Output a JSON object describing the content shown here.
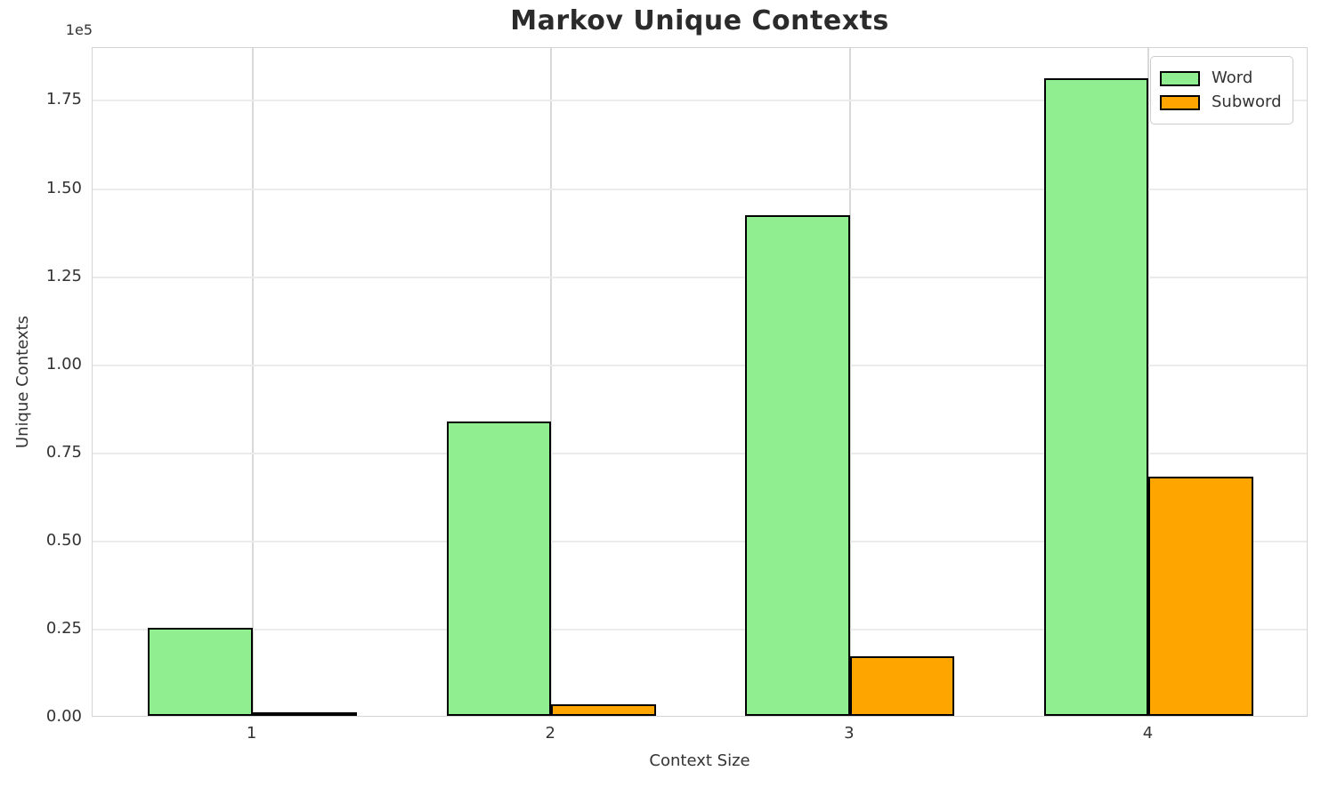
{
  "chart_data": {
    "type": "bar",
    "title": "Markov Unique Contexts",
    "xlabel": "Context Size",
    "ylabel": "Unique Contexts",
    "offset_label": "1e5",
    "categories": [
      1,
      2,
      3,
      4
    ],
    "series": [
      {
        "name": "Word",
        "color": "#90ee90",
        "values": [
          25000,
          83500,
          142000,
          181000
        ]
      },
      {
        "name": "Subword",
        "color": "#ffa500",
        "values": [
          700,
          3200,
          17000,
          68000
        ]
      }
    ],
    "bar_width": 0.35,
    "edge_color": "#000000",
    "xlim": [
      0.465,
      4.535
    ],
    "ylim": [
      0,
      190000
    ],
    "yticks": {
      "values": [
        0,
        25000,
        50000,
        75000,
        100000,
        125000,
        150000,
        175000
      ],
      "labels": [
        "0.00",
        "0.25",
        "0.50",
        "0.75",
        "1.00",
        "1.25",
        "1.50",
        "1.75"
      ]
    },
    "xticks": {
      "values": [
        1,
        2,
        3,
        4
      ],
      "labels": [
        "1",
        "2",
        "3",
        "4"
      ]
    },
    "grid": true,
    "legend_position": "upper right"
  }
}
